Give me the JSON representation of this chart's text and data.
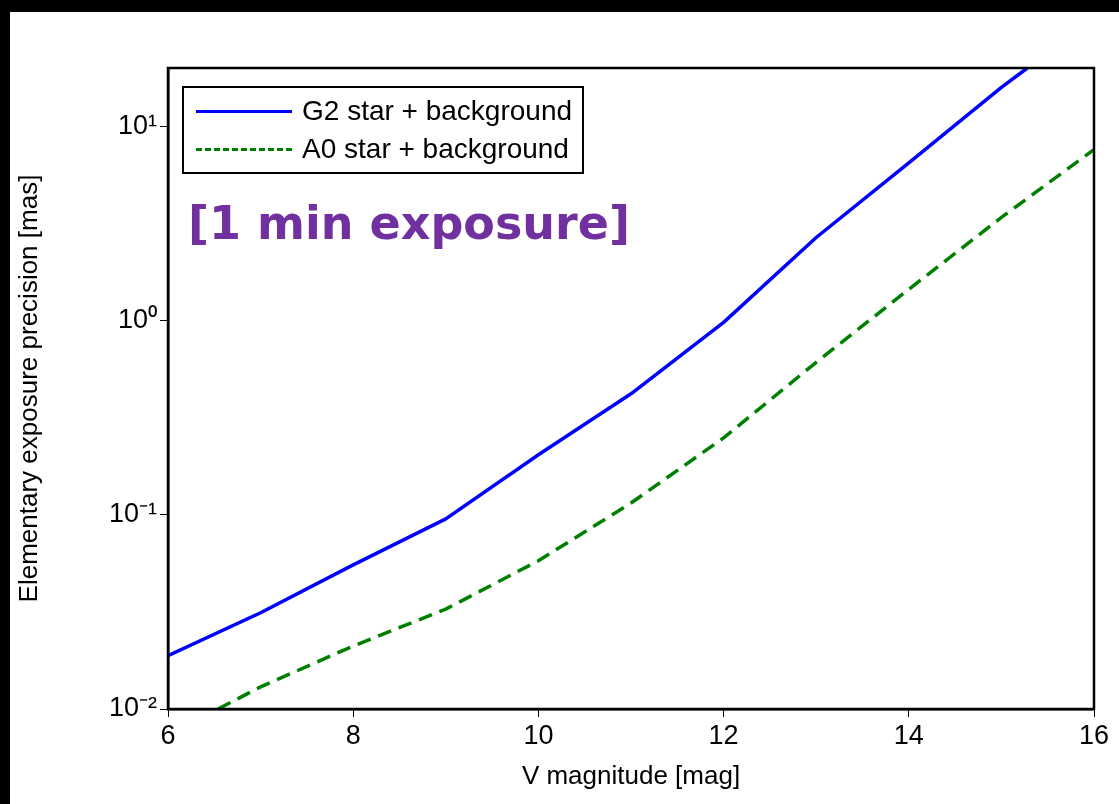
{
  "chart_data": {
    "type": "line",
    "xlabel": "V magnitude [mag]",
    "ylabel": "Elementary exposure precision [mas]",
    "log": "y",
    "grid": false,
    "legend": "top left",
    "marker": "none",
    "annotations": [
      "[1 min exposure]"
    ],
    "xlim": [
      6,
      16
    ],
    "xticks": [
      6,
      8,
      10,
      12,
      14,
      16
    ],
    "ylim": [
      0.01,
      20
    ],
    "yticks": [
      {
        "value": 0.01,
        "label": "10⁻²"
      },
      {
        "value": 0.1,
        "label": "10⁻¹"
      },
      {
        "value": 1,
        "label": "10⁰"
      },
      {
        "value": 10,
        "label": "10¹"
      }
    ],
    "series": [
      {
        "name": "G2 star + background",
        "color": "#0000ff",
        "line_style": "solid",
        "x": [
          6,
          7,
          8,
          9,
          10,
          11,
          12,
          13,
          14,
          15,
          15.28
        ],
        "values": [
          0.0188,
          0.0313,
          0.0552,
          0.0953,
          0.204,
          0.42,
          0.98,
          2.68,
          6.5,
          15.9,
          20
        ]
      },
      {
        "name": "A0 star + background",
        "color": "#008000",
        "line_style": "dashed",
        "x": [
          6.54,
          7,
          8,
          9,
          10,
          11,
          12,
          13,
          14,
          15,
          16
        ],
        "values": [
          0.01,
          0.013,
          0.0211,
          0.0327,
          0.058,
          0.115,
          0.249,
          0.61,
          1.45,
          3.4,
          7.6
        ]
      }
    ]
  }
}
